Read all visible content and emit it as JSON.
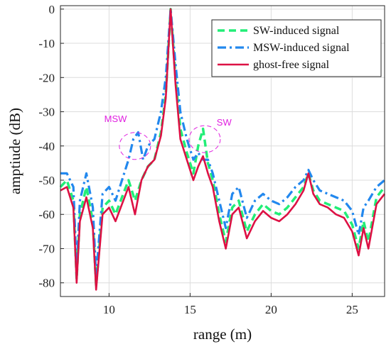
{
  "chart_data": {
    "type": "line",
    "title": "",
    "xlabel": "range (m)",
    "ylabel": "amptiude (dB)",
    "xlim": [
      7,
      27
    ],
    "ylim": [
      -84,
      1
    ],
    "xticks": [
      10,
      15,
      20,
      25
    ],
    "yticks": [
      0,
      -10,
      -20,
      -30,
      -40,
      -50,
      -60,
      -70,
      -80
    ],
    "grid": true,
    "legend_position": "top-right",
    "series": [
      {
        "name": "SW-induced signal",
        "color": "#22ee77",
        "style": "dashed",
        "x": [
          7.0,
          7.4,
          7.8,
          8.0,
          8.2,
          8.6,
          9.0,
          9.2,
          9.6,
          10.0,
          10.4,
          10.8,
          11.2,
          11.6,
          12.0,
          12.4,
          12.8,
          13.2,
          13.5,
          13.8,
          14.1,
          14.4,
          14.8,
          15.2,
          15.5,
          15.8,
          16.1,
          16.4,
          16.8,
          17.2,
          17.6,
          18.0,
          18.5,
          19.0,
          19.5,
          20.0,
          20.5,
          21.0,
          21.5,
          22.0,
          22.3,
          22.6,
          23.0,
          23.5,
          24.0,
          24.5,
          25.0,
          25.4,
          25.7,
          26.0,
          26.5,
          27.0
        ],
        "y": [
          -52,
          -50,
          -56,
          -79,
          -60,
          -52,
          -62,
          -81,
          -58,
          -56,
          -60,
          -55,
          -50,
          -56,
          -50,
          -46,
          -44,
          -36,
          -25,
          0,
          -20,
          -35,
          -42,
          -48,
          -40,
          -35,
          -45,
          -50,
          -60,
          -68,
          -58,
          -56,
          -65,
          -60,
          -57,
          -59,
          -60,
          -58,
          -55,
          -52,
          -48,
          -53,
          -56,
          -57,
          -58,
          -59,
          -63,
          -70,
          -62,
          -68,
          -55,
          -52
        ]
      },
      {
        "name": "MSW-induced signal",
        "color": "#2288ee",
        "style": "dashdot",
        "x": [
          7.0,
          7.4,
          7.8,
          8.0,
          8.2,
          8.6,
          9.0,
          9.2,
          9.6,
          10.0,
          10.4,
          10.8,
          11.2,
          11.5,
          11.8,
          12.1,
          12.4,
          12.8,
          13.2,
          13.5,
          13.8,
          14.1,
          14.4,
          14.8,
          15.2,
          15.5,
          15.8,
          16.1,
          16.4,
          16.8,
          17.2,
          17.6,
          18.0,
          18.5,
          19.0,
          19.5,
          20.0,
          20.5,
          21.0,
          21.5,
          22.0,
          22.3,
          22.6,
          23.0,
          23.5,
          24.0,
          24.5,
          25.0,
          25.4,
          25.7,
          26.0,
          26.5,
          27.0
        ],
        "y": [
          -48,
          -48,
          -52,
          -76,
          -56,
          -48,
          -58,
          -78,
          -54,
          -52,
          -56,
          -50,
          -44,
          -38,
          -36,
          -44,
          -40,
          -38,
          -30,
          -20,
          0,
          -16,
          -30,
          -38,
          -44,
          -42,
          -44,
          -44,
          -48,
          -56,
          -64,
          -54,
          -52,
          -61,
          -56,
          -54,
          -56,
          -57,
          -55,
          -52,
          -50,
          -47,
          -50,
          -53,
          -54,
          -55,
          -56,
          -59,
          -66,
          -58,
          -56,
          -52,
          -50
        ]
      },
      {
        "name": "ghost-free signal",
        "color": "#dd1144",
        "style": "solid",
        "x": [
          7.0,
          7.4,
          7.8,
          8.0,
          8.2,
          8.6,
          9.0,
          9.2,
          9.6,
          10.0,
          10.4,
          10.8,
          11.2,
          11.6,
          12.0,
          12.4,
          12.8,
          13.2,
          13.5,
          13.8,
          14.1,
          14.4,
          14.8,
          15.2,
          15.5,
          15.8,
          16.1,
          16.4,
          16.8,
          17.2,
          17.6,
          18.0,
          18.5,
          19.0,
          19.5,
          20.0,
          20.5,
          21.0,
          21.5,
          22.0,
          22.3,
          22.6,
          23.0,
          23.5,
          24.0,
          24.5,
          25.0,
          25.4,
          25.7,
          26.0,
          26.5,
          27.0
        ],
        "y": [
          -53,
          -52,
          -58,
          -80,
          -62,
          -55,
          -64,
          -82,
          -60,
          -58,
          -62,
          -57,
          -52,
          -60,
          -50,
          -46,
          -44,
          -37,
          -26,
          0,
          -22,
          -38,
          -44,
          -50,
          -46,
          -43,
          -48,
          -52,
          -62,
          -70,
          -60,
          -58,
          -67,
          -62,
          -59,
          -61,
          -62,
          -60,
          -57,
          -53,
          -48,
          -54,
          -57,
          -58,
          -60,
          -61,
          -65,
          -72,
          -64,
          -70,
          -57,
          -54
        ]
      }
    ],
    "annotations": [
      {
        "text": "MSW",
        "x": 11.6,
        "y": -40,
        "label_x": 10.4,
        "label_y": -33
      },
      {
        "text": "SW",
        "x": 15.9,
        "y": -38,
        "label_x": 17.1,
        "label_y": -34
      }
    ]
  }
}
